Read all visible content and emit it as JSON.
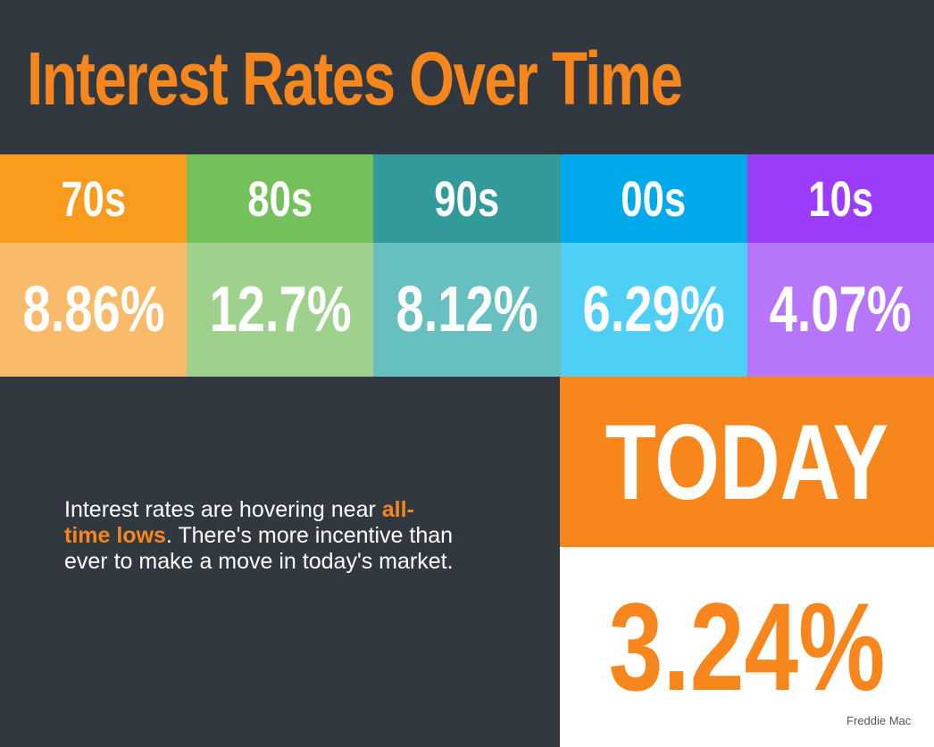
{
  "title": "Interest Rates Over Time",
  "decades": [
    {
      "label": "70s",
      "rate": "8.86%"
    },
    {
      "label": "80s",
      "rate": "12.7%"
    },
    {
      "label": "90s",
      "rate": "8.12%"
    },
    {
      "label": "00s",
      "rate": "6.29%"
    },
    {
      "label": "10s",
      "rate": "4.07%"
    }
  ],
  "message": {
    "before": "Interest rates are hovering near ",
    "highlight": "all-time lows",
    "after": ". There's more incentive than ever to make a move in today's market."
  },
  "today": {
    "label": "TODAY",
    "rate": "3.24%"
  },
  "source": "Freddie Mac"
}
